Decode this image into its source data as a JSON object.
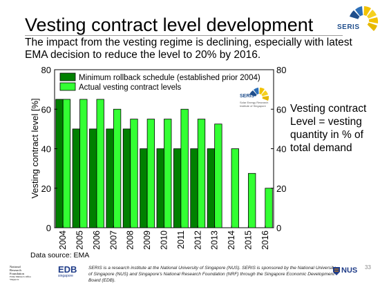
{
  "slide": {
    "title": "Vesting contract level development",
    "subtitle_line1": "The impact from the vesting regime is declining, especially with latest",
    "subtitle_line2": "EMA decision to reduce the level to 20% by 2016.",
    "side_note": [
      "Vesting contract",
      "Level = vesting",
      "quantity in % of",
      "total demand"
    ],
    "source": "Data source: EMA",
    "page_number": "33"
  },
  "logos": {
    "seris_top": "SERIS",
    "seris_inset": "SERIS",
    "seris_inset_tagline": [
      "Solar Energy Research",
      "Institute of Singapore"
    ],
    "nrf_lines": [
      "National",
      "Research",
      "Foundation",
      "Prime Minister's Office",
      "Singapore"
    ],
    "edb": "EDB",
    "edb_sub": "singapore",
    "nus": "NUS"
  },
  "footer": {
    "text": "SERIS is a research institute at the National University of Singapore (NUS). SERIS is sponsored by the National University of Singapore (NUS) and Singapore's National Research Foundation (NRF) through the Singapore Economic Development Board (EDB)."
  },
  "colors": {
    "dark_green": "#008000",
    "light_green": "#33ff33",
    "seris_blue": "#1f4e8c",
    "seris_yellow": "#f2c200"
  },
  "chart_data": {
    "type": "bar",
    "title": "",
    "xlabel": "",
    "ylabel": "Vesting contract level [%]",
    "ylim": [
      0,
      80
    ],
    "yticks": [
      0,
      20,
      40,
      60,
      80
    ],
    "right_axis_ticks": [
      0,
      20,
      40,
      60,
      80
    ],
    "categories": [
      "2004",
      "2005",
      "2006",
      "2007",
      "2008",
      "2009",
      "2010",
      "2011",
      "2012",
      "2013",
      "2014",
      "2015",
      "2016"
    ],
    "series": [
      {
        "name": "Minimum rollback schedule (established prior 2004)",
        "color": "#008000",
        "values": [
          65,
          50,
          50,
          50,
          50,
          40,
          40,
          40,
          40,
          40,
          null,
          null,
          null
        ]
      },
      {
        "name": "Actual vesting contract levels",
        "color": "#33ff33",
        "values": [
          65,
          65,
          65,
          60,
          55,
          55,
          55,
          60,
          55,
          52.5,
          40,
          27.5,
          20
        ]
      }
    ],
    "legend_position": "top-left",
    "grid": false
  }
}
